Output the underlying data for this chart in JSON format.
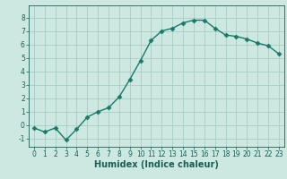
{
  "x": [
    0,
    1,
    2,
    3,
    4,
    5,
    6,
    7,
    8,
    9,
    10,
    11,
    12,
    13,
    14,
    15,
    16,
    17,
    18,
    19,
    20,
    21,
    22,
    23
  ],
  "y": [
    -0.2,
    -0.5,
    -0.2,
    -1.1,
    -0.3,
    0.6,
    1.0,
    1.3,
    2.1,
    3.4,
    4.8,
    6.3,
    7.0,
    7.2,
    7.6,
    7.8,
    7.8,
    7.2,
    6.7,
    6.6,
    6.4,
    6.1,
    5.9,
    5.3
  ],
  "line_color": "#1a7a6a",
  "marker": "D",
  "markersize": 2.5,
  "linewidth": 1.0,
  "bg_color": "#cce8e0",
  "grid_color": "#a8ccC4",
  "xlabel": "Humidex (Indice chaleur)",
  "xlim": [
    -0.5,
    23.5
  ],
  "ylim": [
    -1.6,
    8.9
  ],
  "yticks": [
    -1,
    0,
    1,
    2,
    3,
    4,
    5,
    6,
    7,
    8
  ],
  "xticks": [
    0,
    1,
    2,
    3,
    4,
    5,
    6,
    7,
    8,
    9,
    10,
    11,
    12,
    13,
    14,
    15,
    16,
    17,
    18,
    19,
    20,
    21,
    22,
    23
  ],
  "tick_color": "#1a5f57",
  "xlabel_fontsize": 7,
  "tick_fontsize": 5.5
}
